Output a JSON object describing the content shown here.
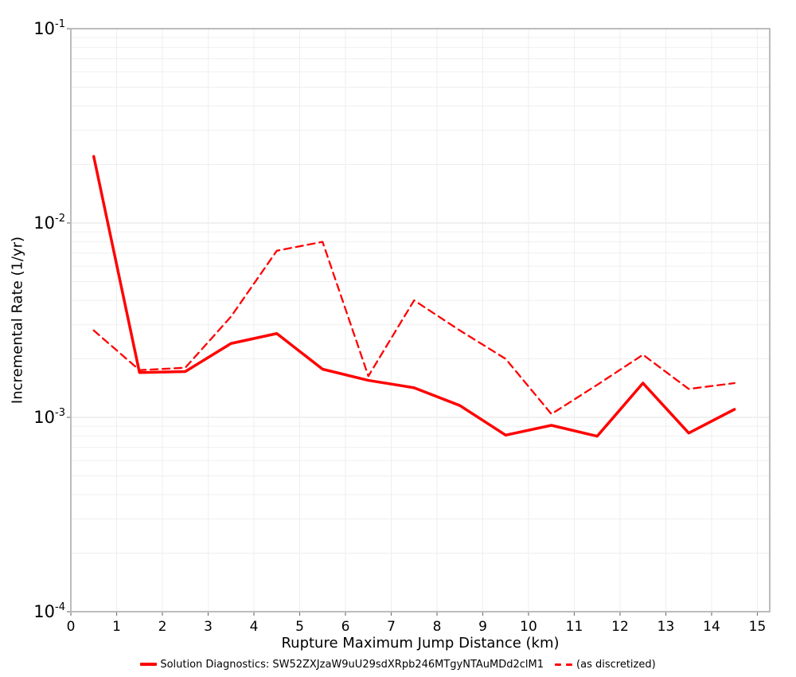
{
  "figure": {
    "xlabel": "Rupture Maximum Jump Distance (km)",
    "ylabel": "Incremental Rate (1/yr)",
    "legend": {
      "solid_label": "Solution Diagnostics: SW52ZXJzaW9uU29sdXRpb246MTgyNTAuMDd2clM1",
      "dashed_label": "(as discretized)"
    },
    "colors": {
      "series_red": "#ff0000",
      "grid_minor": "#efefef",
      "grid_major": "#e2e2e2",
      "border": "#a6a6a6",
      "tick": "#777777",
      "text": "#000000"
    }
  },
  "chart_data": {
    "type": "line",
    "title": "",
    "xlabel": "Rupture Maximum Jump Distance (km)",
    "ylabel": "Incremental Rate (1/yr)",
    "x_scale": "linear",
    "y_scale": "log",
    "xlim": [
      0,
      15.27
    ],
    "ylim": [
      0.0001,
      0.1
    ],
    "grid": true,
    "legend_position": "bottom-center",
    "x_ticks": [
      0,
      1,
      2,
      3,
      4,
      5,
      6,
      7,
      8,
      9,
      10,
      11,
      12,
      13,
      14,
      15
    ],
    "y_ticks": [
      0.1,
      0.01,
      0.001,
      0.0001
    ],
    "y_tick_exponents": [
      -1,
      -2,
      -3,
      -4
    ],
    "x": [
      0.5,
      1.5,
      2.5,
      3.5,
      4.5,
      5.5,
      6.5,
      7.5,
      8.5,
      9.5,
      10.5,
      11.5,
      12.5,
      13.5,
      14.5
    ],
    "series": [
      {
        "name": "Solution Diagnostics: SW52ZXJzaW9uU29sdXRpb246MTgyNTAuMDd2clM1",
        "style": "solid",
        "color": "#ff0000",
        "values": [
          0.022,
          0.0017,
          0.00172,
          0.0024,
          0.0027,
          0.00177,
          0.00155,
          0.00142,
          0.00115,
          0.00081,
          0.00091,
          0.0008,
          0.0015,
          0.00083,
          0.0011
        ]
      },
      {
        "name": "(as discretized)",
        "style": "dashed",
        "color": "#ff0000",
        "values": [
          0.0028,
          0.00175,
          0.0018,
          0.0033,
          0.0072,
          0.008,
          0.00163,
          0.004,
          0.0028,
          0.002,
          0.00104,
          0.00147,
          0.0021,
          0.0014,
          0.0015
        ]
      }
    ]
  }
}
